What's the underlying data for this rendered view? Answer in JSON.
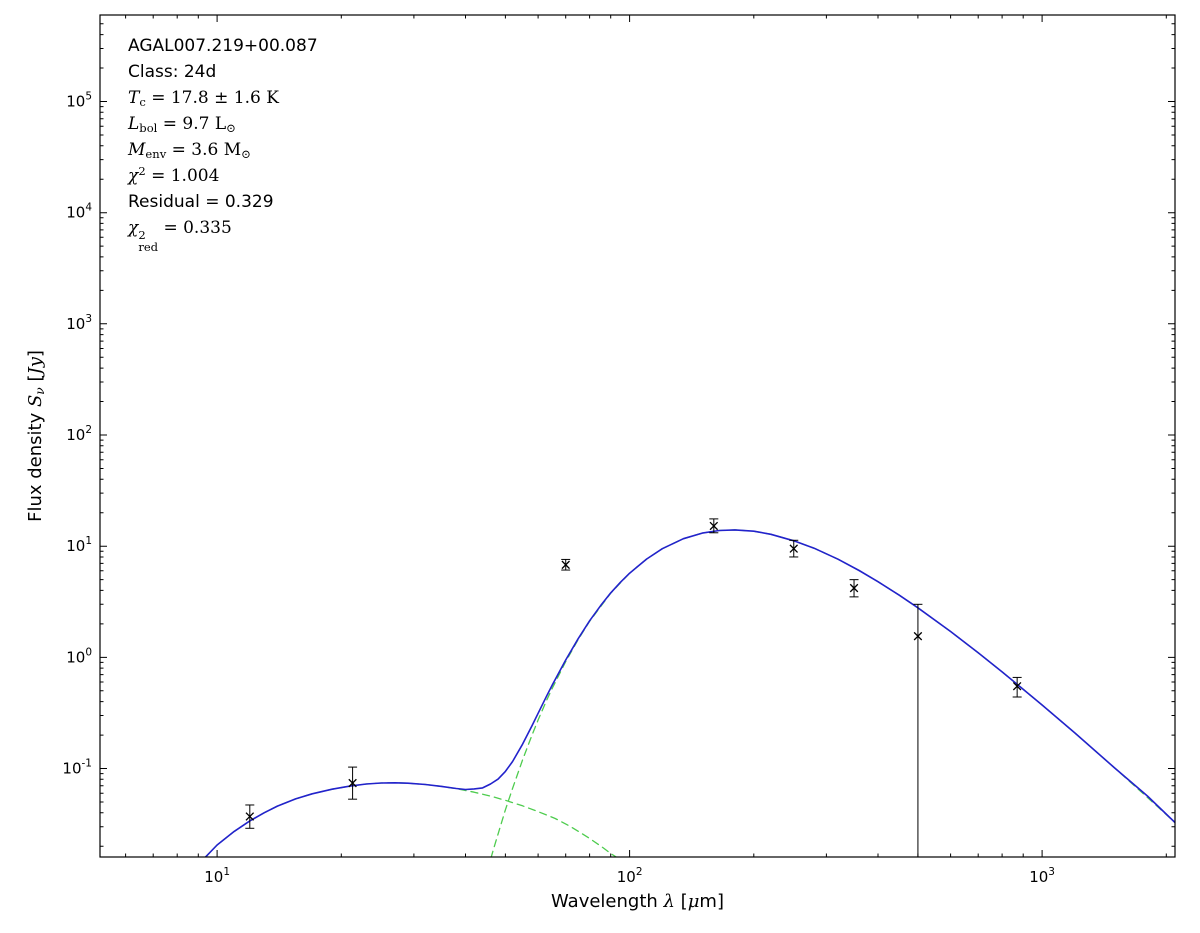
{
  "figure": {
    "background": "#ffffff",
    "frame_color": "#000000",
    "annotation": {
      "lines": [
        {
          "font": "sans",
          "segments": [
            {
              "t": "AGAL007.219+00.087"
            }
          ]
        },
        {
          "font": "sans",
          "segments": [
            {
              "t": "Class: 24d"
            }
          ]
        },
        {
          "font": "math",
          "segments": [
            {
              "t": "T",
              "i": true
            },
            {
              "sub": "c"
            },
            {
              "t": " = 17.8 ± 1.6 K"
            }
          ]
        },
        {
          "font": "math",
          "segments": [
            {
              "t": "L",
              "i": true
            },
            {
              "sub": "bol"
            },
            {
              "t": " = 9.7 L"
            },
            {
              "sub": "⊙"
            }
          ]
        },
        {
          "font": "math",
          "segments": [
            {
              "t": "M",
              "i": true
            },
            {
              "sub": "env"
            },
            {
              "t": " = 3.6 M"
            },
            {
              "sub": "⊙"
            }
          ]
        },
        {
          "font": "math",
          "segments": [
            {
              "t": "χ",
              "i": true
            },
            {
              "sup": "2"
            },
            {
              "t": " = 1.004"
            }
          ]
        },
        {
          "font": "sans",
          "segments": [
            {
              "t": "Residual = 0.329"
            }
          ]
        },
        {
          "font": "math",
          "segments": [
            {
              "t": "χ",
              "i": true
            },
            {
              "sup": "2",
              "sub": "red"
            },
            {
              "t": " = 0.335"
            }
          ]
        }
      ]
    }
  },
  "chart_data": {
    "type": "line",
    "title": "",
    "xlabel": "Wavelength λ [μm]",
    "ylabel": "Flux density Sν [Jy]",
    "xscale": "log",
    "yscale": "log",
    "xlim": [
      5.2,
      2100
    ],
    "ylim": [
      0.016,
      600000
    ],
    "grid": false,
    "legend": "none",
    "x_ticks": [
      {
        "base": "10",
        "exp": "1"
      },
      {
        "base": "10",
        "exp": "2"
      },
      {
        "base": "10",
        "exp": "3"
      }
    ],
    "y_ticks": [
      {
        "base": "10",
        "exp": "-1"
      },
      {
        "base": "10",
        "exp": "0"
      },
      {
        "base": "10",
        "exp": "1"
      },
      {
        "base": "10",
        "exp": "2"
      },
      {
        "base": "10",
        "exp": "3"
      },
      {
        "base": "10",
        "exp": "4"
      },
      {
        "base": "10",
        "exp": "5"
      }
    ],
    "xlabel_segments": [
      {
        "t": "Wavelength "
      },
      {
        "t": "λ",
        "i": true
      },
      {
        "t": " ["
      },
      {
        "t": "μ",
        "i": true
      },
      {
        "t": "m]"
      }
    ],
    "ylabel_segments": [
      {
        "t": "Flux density "
      },
      {
        "t": "S",
        "i": true
      },
      {
        "sub": "ν",
        "i": true
      },
      {
        "t": " ["
      },
      {
        "t": "Jy",
        "i": true
      },
      {
        "t": "]"
      }
    ],
    "annotations": [
      "AGAL007.219+00.087",
      "Class: 24d",
      "T_c = 17.8 ± 1.6 K",
      "L_bol = 9.7 L⊙",
      "M_env = 3.6 M⊙",
      "χ² = 1.004",
      "Residual = 0.329",
      "χ²_red = 0.335"
    ],
    "series": [
      {
        "name": "warm-component",
        "color": "#4ecc4e",
        "style": "dashed",
        "width": 1.3,
        "points": [
          [
            9.3,
            0.0155
          ],
          [
            10,
            0.0205
          ],
          [
            11,
            0.0272
          ],
          [
            12,
            0.0338
          ],
          [
            13,
            0.04
          ],
          [
            14,
            0.0459
          ],
          [
            15.5,
            0.0533
          ],
          [
            17,
            0.0592
          ],
          [
            19,
            0.0652
          ],
          [
            21,
            0.0695
          ],
          [
            23,
            0.0726
          ],
          [
            25,
            0.0741
          ],
          [
            27,
            0.0744
          ],
          [
            29,
            0.0738
          ],
          [
            32,
            0.0718
          ],
          [
            35,
            0.069
          ],
          [
            38,
            0.0658
          ],
          [
            42,
            0.0612
          ],
          [
            46,
            0.0565
          ],
          [
            50,
            0.0518
          ],
          [
            55,
            0.0462
          ],
          [
            60,
            0.041
          ],
          [
            66,
            0.0355
          ],
          [
            72,
            0.03
          ],
          [
            80,
            0.0235
          ],
          [
            86,
            0.0195
          ],
          [
            90,
            0.0172
          ],
          [
            94,
            0.0155
          ]
        ]
      },
      {
        "name": "cold-component",
        "color": "#4ecc4e",
        "style": "dashed",
        "width": 1.3,
        "points": [
          [
            43,
            0.006
          ],
          [
            45,
            0.0115
          ],
          [
            47,
            0.02
          ],
          [
            50,
            0.0425
          ],
          [
            52,
            0.066
          ],
          [
            55,
            0.119
          ],
          [
            58,
            0.2
          ],
          [
            60,
            0.273
          ],
          [
            63,
            0.414
          ],
          [
            65,
            0.53
          ],
          [
            70,
            0.916
          ],
          [
            75,
            1.44
          ],
          [
            80,
            2.11
          ],
          [
            90,
            3.78
          ],
          [
            100,
            5.71
          ],
          [
            110,
            7.67
          ],
          [
            120,
            9.49
          ],
          [
            135,
            11.67
          ],
          [
            150,
            13.11
          ],
          [
            165,
            13.85
          ],
          [
            180,
            14.0
          ],
          [
            200,
            13.65
          ],
          [
            220,
            12.78
          ],
          [
            250,
            11.19
          ],
          [
            280,
            9.59
          ],
          [
            320,
            7.63
          ],
          [
            360,
            6.04
          ],
          [
            400,
            4.79
          ],
          [
            450,
            3.63
          ],
          [
            500,
            2.79
          ],
          [
            600,
            1.71
          ],
          [
            700,
            1.1
          ],
          [
            800,
            0.74
          ],
          [
            870,
            0.574
          ],
          [
            1000,
            0.373
          ],
          [
            1200,
            0.209
          ],
          [
            1500,
            0.101
          ],
          [
            1800,
            0.055
          ],
          [
            2100,
            0.0327
          ]
        ]
      },
      {
        "name": "model-total",
        "color": "#2222cc",
        "style": "solid",
        "width": 1.6,
        "points": [
          [
            9.3,
            0.0155
          ],
          [
            10,
            0.0205
          ],
          [
            11,
            0.0272
          ],
          [
            12,
            0.0338
          ],
          [
            13,
            0.04
          ],
          [
            14,
            0.0459
          ],
          [
            15.5,
            0.0533
          ],
          [
            17,
            0.0592
          ],
          [
            19,
            0.0652
          ],
          [
            21,
            0.0695
          ],
          [
            23,
            0.0726
          ],
          [
            25,
            0.0741
          ],
          [
            27,
            0.0744
          ],
          [
            29,
            0.0738
          ],
          [
            32,
            0.0718
          ],
          [
            35,
            0.069
          ],
          [
            38,
            0.0661
          ],
          [
            40,
            0.0648
          ],
          [
            42,
            0.0656
          ],
          [
            44,
            0.067
          ],
          [
            46,
            0.0725
          ],
          [
            48,
            0.0803
          ],
          [
            50,
            0.0943
          ],
          [
            52,
            0.1155
          ],
          [
            55,
            0.165
          ],
          [
            58,
            0.243
          ],
          [
            60,
            0.314
          ],
          [
            63,
            0.452
          ],
          [
            65,
            0.566
          ],
          [
            70,
            0.947
          ],
          [
            75,
            1.47
          ],
          [
            80,
            2.13
          ],
          [
            85,
            2.91
          ],
          [
            90,
            3.8
          ],
          [
            95,
            4.73
          ],
          [
            100,
            5.71
          ],
          [
            110,
            7.67
          ],
          [
            120,
            9.49
          ],
          [
            135,
            11.67
          ],
          [
            150,
            13.11
          ],
          [
            165,
            13.85
          ],
          [
            180,
            14.0
          ],
          [
            200,
            13.65
          ],
          [
            220,
            12.78
          ],
          [
            250,
            11.19
          ],
          [
            280,
            9.59
          ],
          [
            320,
            7.63
          ],
          [
            360,
            6.04
          ],
          [
            400,
            4.79
          ],
          [
            450,
            3.63
          ],
          [
            500,
            2.79
          ],
          [
            600,
            1.71
          ],
          [
            700,
            1.1
          ],
          [
            800,
            0.74
          ],
          [
            870,
            0.574
          ],
          [
            1000,
            0.373
          ],
          [
            1200,
            0.209
          ],
          [
            1500,
            0.101
          ],
          [
            1800,
            0.0566
          ],
          [
            2100,
            0.0327
          ]
        ]
      }
    ],
    "observations": {
      "marker": "x",
      "color": "#000000",
      "points": [
        {
          "x": 12,
          "y": 0.037,
          "lo": 0.029,
          "hi": 0.047
        },
        {
          "x": 21.3,
          "y": 0.074,
          "lo": 0.053,
          "hi": 0.103
        },
        {
          "x": 70,
          "y": 6.8,
          "lo": 6.1,
          "hi": 7.6
        },
        {
          "x": 160,
          "y": 15.2,
          "lo": 13.2,
          "hi": 17.6
        },
        {
          "x": 250,
          "y": 9.5,
          "lo": 8.0,
          "hi": 11.3
        },
        {
          "x": 350,
          "y": 4.2,
          "lo": 3.5,
          "hi": 5.0
        },
        {
          "x": 500,
          "y": 1.55,
          "lo": 0.0161,
          "hi": 3.0,
          "lo_clipped": true
        },
        {
          "x": 870,
          "y": 0.55,
          "lo": 0.44,
          "hi": 0.66
        }
      ]
    }
  }
}
